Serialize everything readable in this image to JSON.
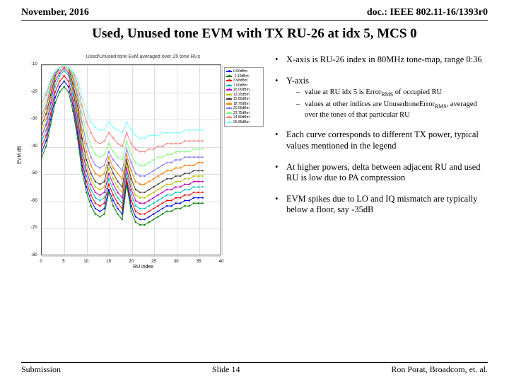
{
  "header": {
    "left": "November, 2016",
    "right": "doc.: IEEE 802.11-16/1393r0"
  },
  "title": "Used, Unused tone EVM with TX RU-26 at idx 5, MCS 0",
  "chart": {
    "title": "Used/Unused tone EvM averaged over 25 tone RUs",
    "xlabel": "RU index",
    "ylabel": "EVM dB",
    "xlim": [
      0,
      40
    ],
    "ylim": [
      -80,
      -10
    ],
    "xticks": [
      0,
      5,
      10,
      15,
      20,
      25,
      30,
      35,
      40
    ],
    "yticks": [
      -80,
      -70,
      -60,
      -50,
      -40,
      -30,
      -20,
      -10
    ],
    "grid_color": "#dddddd",
    "axis_color": "#555555",
    "background": "#ffffff",
    "series": [
      {
        "label": "0.00dBm",
        "color": "#0000ff",
        "y": [
          -42,
          -38,
          -30,
          -22,
          -18,
          -16,
          -18,
          -25,
          -35,
          -47,
          -55,
          -60,
          -63,
          -64,
          -63,
          -56,
          -60,
          -63,
          -65,
          -53,
          -62,
          -66,
          -67,
          -67,
          -66,
          -65,
          -64,
          -63,
          -62,
          -62,
          -61,
          -61,
          -60,
          -60,
          -59,
          -59,
          -59
        ]
      },
      {
        "label": "-2.10dBm",
        "color": "#008000",
        "y": [
          -44,
          -40,
          -32,
          -24,
          -20,
          -18,
          -20,
          -27,
          -37,
          -49,
          -57,
          -62,
          -65,
          -66,
          -65,
          -57,
          -62,
          -65,
          -67,
          -54,
          -64,
          -68,
          -69,
          -69,
          -68,
          -67,
          -66,
          -65,
          -64,
          -64,
          -63,
          -63,
          -62,
          -62,
          -61,
          -61,
          -61
        ]
      },
      {
        "label": "3.98dBm",
        "color": "#ff0000",
        "y": [
          -40,
          -36,
          -28,
          -20,
          -16,
          -14,
          -16,
          -23,
          -33,
          -45,
          -53,
          -58,
          -61,
          -62,
          -61,
          -54,
          -58,
          -61,
          -63,
          -52,
          -60,
          -64,
          -65,
          -65,
          -64,
          -63,
          -62,
          -61,
          -60,
          -60,
          -59,
          -59,
          -58,
          -58,
          -57,
          -57,
          -57
        ]
      },
      {
        "label": "7.00dBm",
        "color": "#00bfbf",
        "y": [
          -38,
          -34,
          -26,
          -18,
          -14,
          -12,
          -14,
          -21,
          -31,
          -43,
          -51,
          -56,
          -59,
          -60,
          -59,
          -52,
          -56,
          -59,
          -61,
          -50,
          -58,
          -62,
          -63,
          -63,
          -62,
          -61,
          -60,
          -59,
          -58,
          -58,
          -57,
          -57,
          -56,
          -56,
          -55,
          -55,
          -55
        ]
      },
      {
        "label": "10.00dBm",
        "color": "#bf00bf",
        "y": [
          -36,
          -32,
          -24,
          -16,
          -13,
          -11,
          -13,
          -19,
          -29,
          -41,
          -49,
          -54,
          -57,
          -58,
          -57,
          -50,
          -54,
          -57,
          -59,
          -48,
          -56,
          -60,
          -61,
          -61,
          -60,
          -59,
          -58,
          -57,
          -56,
          -56,
          -55,
          -55,
          -54,
          -54,
          -53,
          -53,
          -53
        ]
      },
      {
        "label": "13.25dBm",
        "color": "#bfbf00",
        "y": [
          -34,
          -30,
          -22,
          -15,
          -12,
          -10,
          -12,
          -18,
          -27,
          -39,
          -47,
          -52,
          -55,
          -56,
          -55,
          -48,
          -52,
          -55,
          -57,
          -46,
          -54,
          -58,
          -59,
          -59,
          -58,
          -57,
          -56,
          -55,
          -54,
          -54,
          -53,
          -53,
          -52,
          -52,
          -51,
          -51,
          -51
        ]
      },
      {
        "label": "15.80dBm",
        "color": "#404040",
        "y": [
          -32,
          -28,
          -21,
          -14,
          -11,
          -10,
          -11,
          -17,
          -25,
          -37,
          -45,
          -50,
          -53,
          -54,
          -53,
          -46,
          -50,
          -53,
          -55,
          -45,
          -52,
          -56,
          -57,
          -57,
          -56,
          -55,
          -54,
          -53,
          -52,
          -52,
          -51,
          -51,
          -50,
          -50,
          -49,
          -49,
          -49
        ]
      },
      {
        "label": "18.70dBm",
        "color": "#ff8000",
        "y": [
          -30,
          -26,
          -19,
          -13,
          -11,
          -10,
          -11,
          -15,
          -23,
          -34,
          -42,
          -47,
          -50,
          -51,
          -50,
          -44,
          -48,
          -50,
          -52,
          -43,
          -49,
          -53,
          -54,
          -54,
          -53,
          -52,
          -51,
          -50,
          -49,
          -49,
          -48,
          -48,
          -47,
          -47,
          -47,
          -46,
          -46
        ]
      },
      {
        "label": "20.55dBm",
        "color": "#8080ff",
        "y": [
          -28,
          -25,
          -18,
          -13,
          -11,
          -10,
          -11,
          -14,
          -21,
          -31,
          -39,
          -44,
          -47,
          -48,
          -47,
          -42,
          -45,
          -47,
          -49,
          -41,
          -46,
          -50,
          -51,
          -51,
          -50,
          -49,
          -48,
          -47,
          -46,
          -46,
          -45,
          -45,
          -44,
          -44,
          -44,
          -44,
          -44
        ]
      },
      {
        "label": "22.75dBm",
        "color": "#80ff80",
        "y": [
          -26,
          -23,
          -17,
          -12,
          -11,
          -10,
          -11,
          -13,
          -19,
          -28,
          -35,
          -40,
          -43,
          -44,
          -43,
          -39,
          -42,
          -44,
          -45,
          -38,
          -43,
          -46,
          -47,
          -47,
          -46,
          -45,
          -44,
          -44,
          -43,
          -43,
          -42,
          -42,
          -42,
          -42,
          -41,
          -41,
          -41
        ]
      },
      {
        "label": "24.80dBm",
        "color": "#ff8080",
        "y": [
          -24,
          -21,
          -16,
          -12,
          -11,
          -10,
          -11,
          -12,
          -17,
          -25,
          -31,
          -35,
          -38,
          -39,
          -38,
          -35,
          -37,
          -39,
          -40,
          -35,
          -39,
          -41,
          -42,
          -42,
          -41,
          -41,
          -40,
          -40,
          -39,
          -39,
          -39,
          -39,
          -38,
          -38,
          -38,
          -38,
          -38
        ]
      },
      {
        "label": "25.85dBm",
        "color": "#80ffff",
        "y": [
          -22,
          -20,
          -15,
          -12,
          -11,
          -10,
          -11,
          -12,
          -15,
          -22,
          -27,
          -31,
          -33,
          -34,
          -34,
          -31,
          -33,
          -34,
          -35,
          -31,
          -34,
          -36,
          -37,
          -37,
          -36,
          -36,
          -36,
          -35,
          -35,
          -35,
          -35,
          -35,
          -34,
          -34,
          -34,
          -34,
          -34
        ]
      }
    ]
  },
  "bullets": [
    {
      "text": "X-axis is RU-26 index in 80MHz tone-map, range 0:36"
    },
    {
      "text": "Y-axis",
      "sub": [
        "value at RU idx 5 is Error|RMS| of occupied RU",
        "values at other indices are UnusedtoneError|RMS|, averaged over the tones of that particular RU"
      ]
    },
    {
      "text": "Each curve corresponds to different TX power, typical values mentioned in the legend"
    },
    {
      "text": "At higher powers, delta between adjacent RU and used RU is low due to PA compression"
    },
    {
      "text": "EVM spikes due to LO and IQ mismatch are typically below a floor, say -35dB"
    }
  ],
  "footer": {
    "left": "Submission",
    "center": "Slide 14",
    "right": "Ron Porat, Broadcom, et. al."
  }
}
